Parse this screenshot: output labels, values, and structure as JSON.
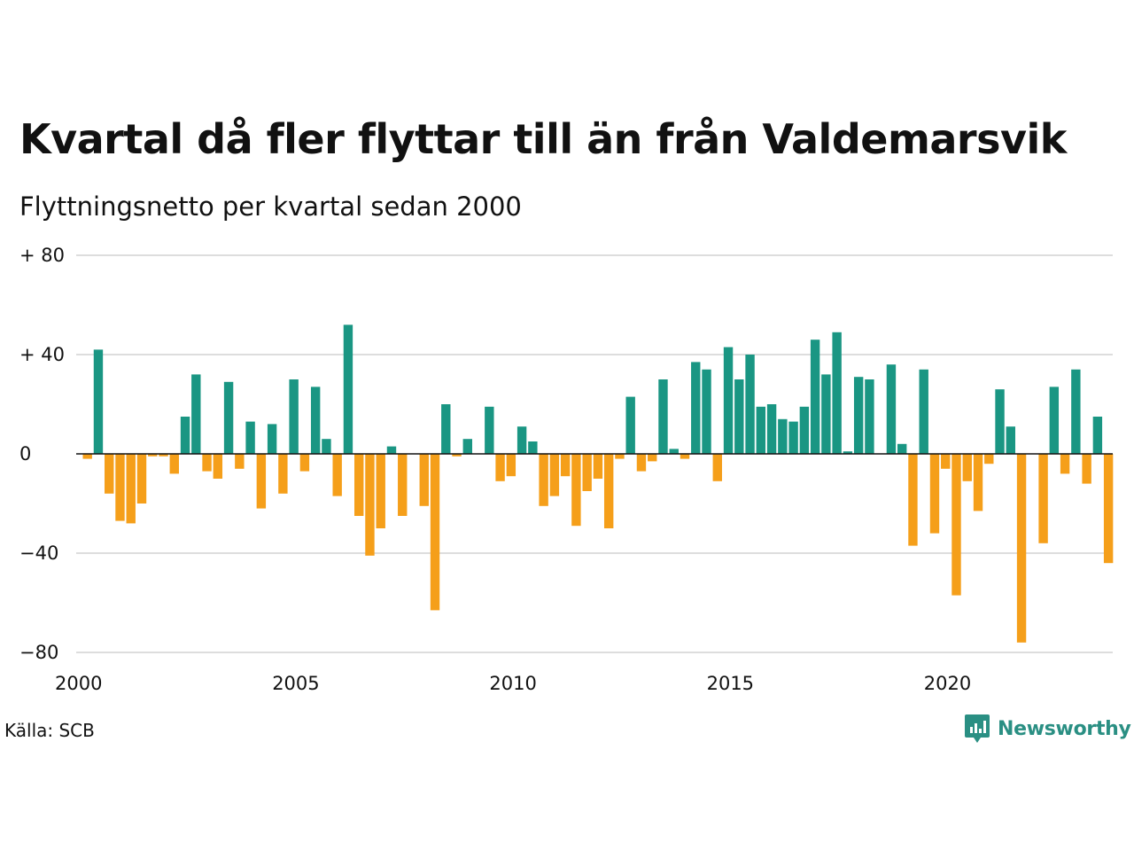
{
  "header": {
    "title": "Kvartal då fler flyttar till än från Valdemarsvik",
    "subtitle": "Flyttningsnetto per kvartal sedan 2000"
  },
  "footer": {
    "source": "Källa: SCB",
    "brand": "Newsworthy",
    "brand_icon": "bar-chart-bubble-icon"
  },
  "colors": {
    "positive": "#1a9683",
    "negative": "#f59f1a",
    "grid": "#dddddd",
    "zero_line": "#111111",
    "brand": "#2a8f83"
  },
  "chart_data": {
    "type": "bar",
    "ylim": [
      -80,
      80
    ],
    "yticks": [
      {
        "value": 80,
        "label": "+ 80"
      },
      {
        "value": 40,
        "label": "+ 40"
      },
      {
        "value": 0,
        "label": "0"
      },
      {
        "value": -40,
        "label": "−40"
      },
      {
        "value": -80,
        "label": "−80"
      }
    ],
    "xticks": [
      "2000",
      "2005",
      "2010",
      "2015",
      "2020"
    ],
    "xlim": [
      2000,
      2024
    ],
    "grid": true,
    "x_start": "2000-Q1",
    "values": [
      -2,
      42,
      -16,
      -27,
      -28,
      -20,
      -1,
      -1,
      -8,
      15,
      32,
      -7,
      -10,
      29,
      -6,
      13,
      -22,
      12,
      -16,
      30,
      -7,
      27,
      6,
      -17,
      52,
      -25,
      -41,
      -30,
      3,
      -25,
      0,
      -21,
      -63,
      20,
      -1,
      6,
      0,
      19,
      -11,
      -9,
      11,
      5,
      -21,
      -17,
      -9,
      -29,
      -15,
      -10,
      -30,
      -2,
      23,
      -7,
      -3,
      30,
      2,
      -2,
      37,
      34,
      -11,
      43,
      30,
      40,
      19,
      20,
      14,
      13,
      19,
      46,
      32,
      49,
      1,
      31,
      30,
      0,
      36,
      4,
      -37,
      34,
      -32,
      -6,
      -57,
      -11,
      -23,
      -4,
      26,
      11,
      -76,
      0,
      -36,
      27,
      -8,
      34,
      -12,
      15,
      -44
    ]
  }
}
